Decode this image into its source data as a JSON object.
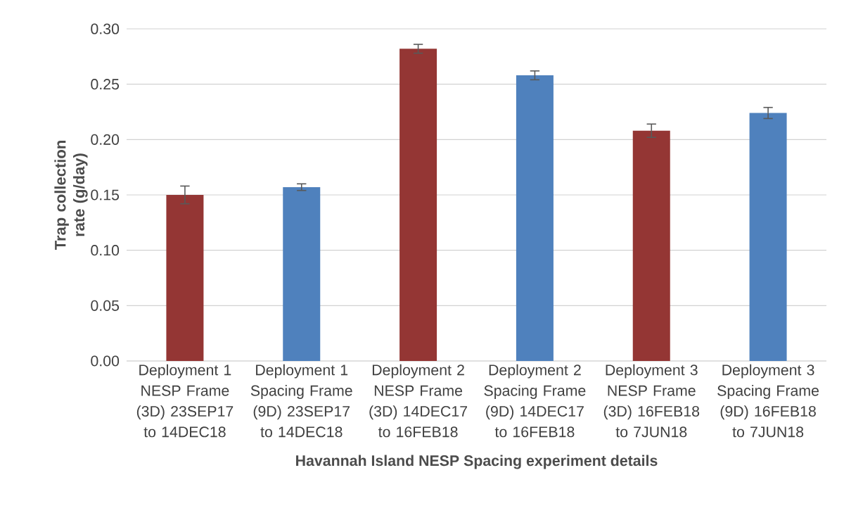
{
  "chart_data": {
    "type": "bar",
    "xlabel": "Havannah Island NESP Spacing experiment details",
    "ylabel": "Trap collection rate (g/day)",
    "categories": [
      "Deployment 1 NESP Frame (3D) 23SEP17 to 14DEC18",
      "Deployment 1 Spacing Frame (9D) 23SEP17 to 14DEC18",
      "Deployment 2 NESP Frame (3D) 14DEC17 to 16FEB18",
      "Deployment 2 Spacing Frame (9D) 14DEC17 to 16FEB18",
      "Deployment 3 NESP Frame (3D) 16FEB18 to 7JUN18",
      "Deployment 3 Spacing Frame (9D) 16FEB18 to 7JUN18"
    ],
    "values": [
      0.15,
      0.157,
      0.282,
      0.258,
      0.208,
      0.224
    ],
    "errors": [
      0.008,
      0.003,
      0.004,
      0.004,
      0.006,
      0.005
    ],
    "colors": [
      "#943634",
      "#4f81bd",
      "#943634",
      "#4f81bd",
      "#943634",
      "#4f81bd"
    ],
    "ylim": [
      0,
      0.3
    ],
    "yticks": [
      {
        "value": 0,
        "label": "0.00"
      },
      {
        "value": 0.05,
        "label": "0.05"
      },
      {
        "value": 0.1,
        "label": "0.10"
      },
      {
        "value": 0.15,
        "label": "0.15"
      },
      {
        "value": 0.2,
        "label": "0.20"
      },
      {
        "value": 0.25,
        "label": "0.25"
      },
      {
        "value": 0.3,
        "label": "0.30"
      }
    ],
    "grid": "y"
  }
}
